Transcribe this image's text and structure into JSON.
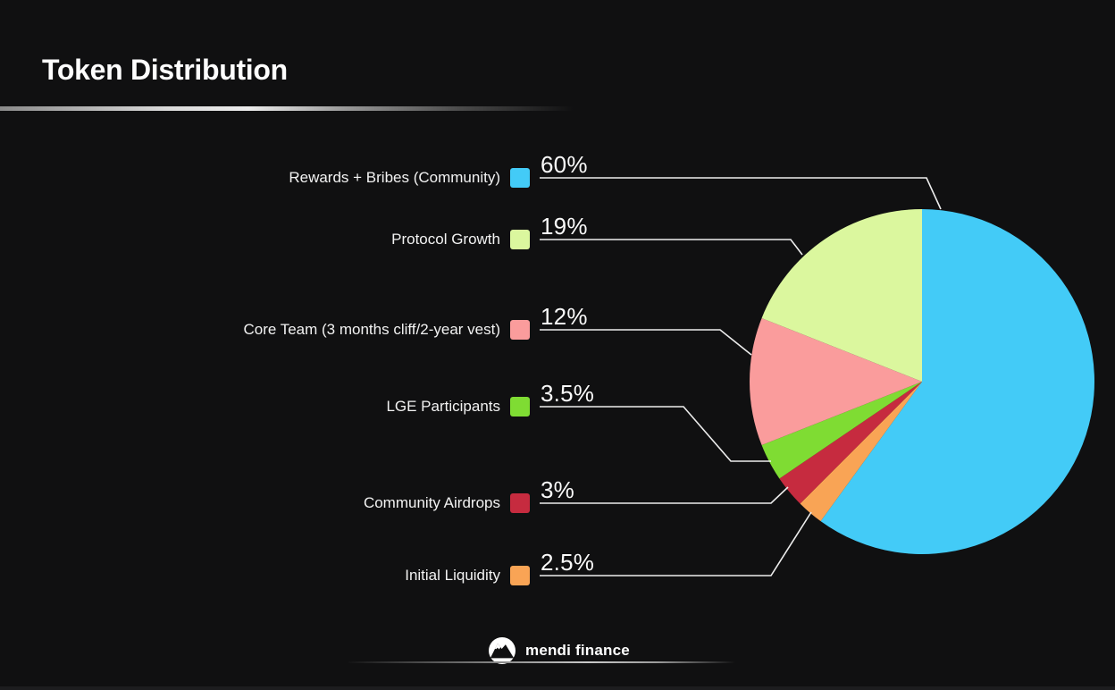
{
  "slide": {
    "title": "Token Distribution"
  },
  "chart_data": {
    "type": "pie",
    "title": "Token Distribution",
    "legend_position": "left",
    "grid": false,
    "total": 100,
    "categories": [
      "Rewards + Bribes (Community)",
      "Protocol Growth",
      "Core Team (3 months cliff/2-year vest)",
      "LGE Participants",
      "Community Airdrops",
      "Initial Liquidity"
    ],
    "values": [
      60,
      19,
      12,
      3.5,
      3,
      2.5
    ],
    "items": [
      {
        "label": "Rewards + Bribes (Community)",
        "value": 60,
        "display": "60%",
        "color": "#43CBF7"
      },
      {
        "label": "Protocol Growth",
        "value": 19,
        "display": "19%",
        "color": "#DBF79E"
      },
      {
        "label": "Core Team (3 months cliff/2-year vest)",
        "value": 12,
        "display": "12%",
        "color": "#FA9C9C"
      },
      {
        "label": "LGE Participants",
        "value": 3.5,
        "display": "3.5%",
        "color": "#7FDC33"
      },
      {
        "label": "Community Airdrops",
        "value": 3,
        "display": "3%",
        "color": "#C62B3F"
      },
      {
        "label": "Initial Liquidity",
        "value": 2.5,
        "display": "2.5%",
        "color": "#F9A455"
      }
    ],
    "pie": {
      "start_angle_deg": 0,
      "direction": "clockwise",
      "order": [
        0,
        5,
        4,
        3,
        2,
        1
      ]
    }
  },
  "footer": {
    "brand": "mendi finance"
  }
}
